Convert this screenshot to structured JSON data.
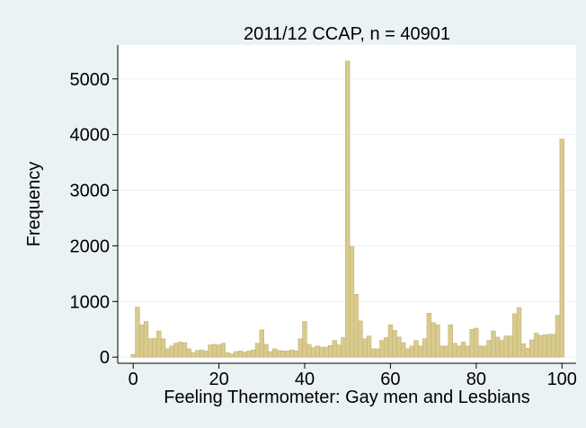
{
  "chart_data": {
    "type": "histogram",
    "title": "2011/12 CCAP, n = 40901",
    "x_label": "Feeling Thermometer: Gay men and Lesbians",
    "y_label": "Frequency",
    "bins": [
      -0.5,
      0.5,
      1.5,
      2.5,
      3.5,
      4.5,
      5.5,
      6.5,
      7.5,
      8.5,
      9.5,
      10.5,
      11.5,
      12.5,
      13.5,
      14.5,
      15.5,
      16.5,
      17.5,
      18.5,
      19.5,
      20.5,
      21.5,
      22.5,
      23.5,
      24.5,
      25.5,
      26.5,
      27.5,
      28.5,
      29.5,
      30.5,
      31.5,
      32.5,
      33.5,
      34.5,
      35.5,
      36.5,
      37.5,
      38.5,
      39.5,
      40.5,
      41.5,
      42.5,
      43.5,
      44.5,
      45.5,
      46.5,
      47.5,
      48.5,
      49.5,
      50.5,
      51.5,
      52.5,
      53.5,
      54.5,
      55.5,
      56.5,
      57.5,
      58.5,
      59.5,
      60.5,
      61.5,
      62.5,
      63.5,
      64.5,
      65.5,
      66.5,
      67.5,
      68.5,
      69.5,
      70.5,
      71.5,
      72.5,
      73.5,
      74.5,
      75.5,
      76.5,
      77.5,
      78.5,
      79.5,
      80.5,
      81.5,
      82.5,
      83.5,
      84.5,
      85.5,
      86.5,
      87.5,
      88.5,
      89.5,
      90.5,
      91.5,
      92.5,
      93.5,
      94.5,
      95.5,
      96.5,
      97.5,
      98.5,
      99.5,
      100.5
    ],
    "values": [
      50,
      900,
      580,
      640,
      330,
      340,
      470,
      330,
      150,
      200,
      250,
      270,
      260,
      150,
      80,
      120,
      130,
      110,
      220,
      230,
      220,
      250,
      80,
      60,
      100,
      110,
      90,
      110,
      130,
      250,
      490,
      230,
      100,
      150,
      120,
      110,
      110,
      130,
      110,
      330,
      640,
      230,
      170,
      200,
      180,
      180,
      210,
      300,
      220,
      350,
      5320,
      1990,
      1130,
      650,
      330,
      380,
      150,
      150,
      300,
      350,
      580,
      480,
      360,
      260,
      150,
      200,
      300,
      200,
      330,
      790,
      620,
      580,
      200,
      200,
      580,
      250,
      200,
      270,
      200,
      500,
      520,
      200,
      200,
      300,
      470,
      360,
      300,
      380,
      380,
      780,
      890,
      240,
      160,
      310,
      430,
      390,
      400,
      410,
      410,
      750,
      3920
    ],
    "color": "#d9cb8e",
    "xlim": [
      -3.6,
      103.3
    ],
    "ylim": [
      -110,
      5610
    ],
    "xticks": [
      0,
      20,
      40,
      60,
      80,
      100
    ],
    "yticks": [
      0,
      1000,
      2000,
      3000,
      4000,
      5000
    ],
    "grid": true
  }
}
